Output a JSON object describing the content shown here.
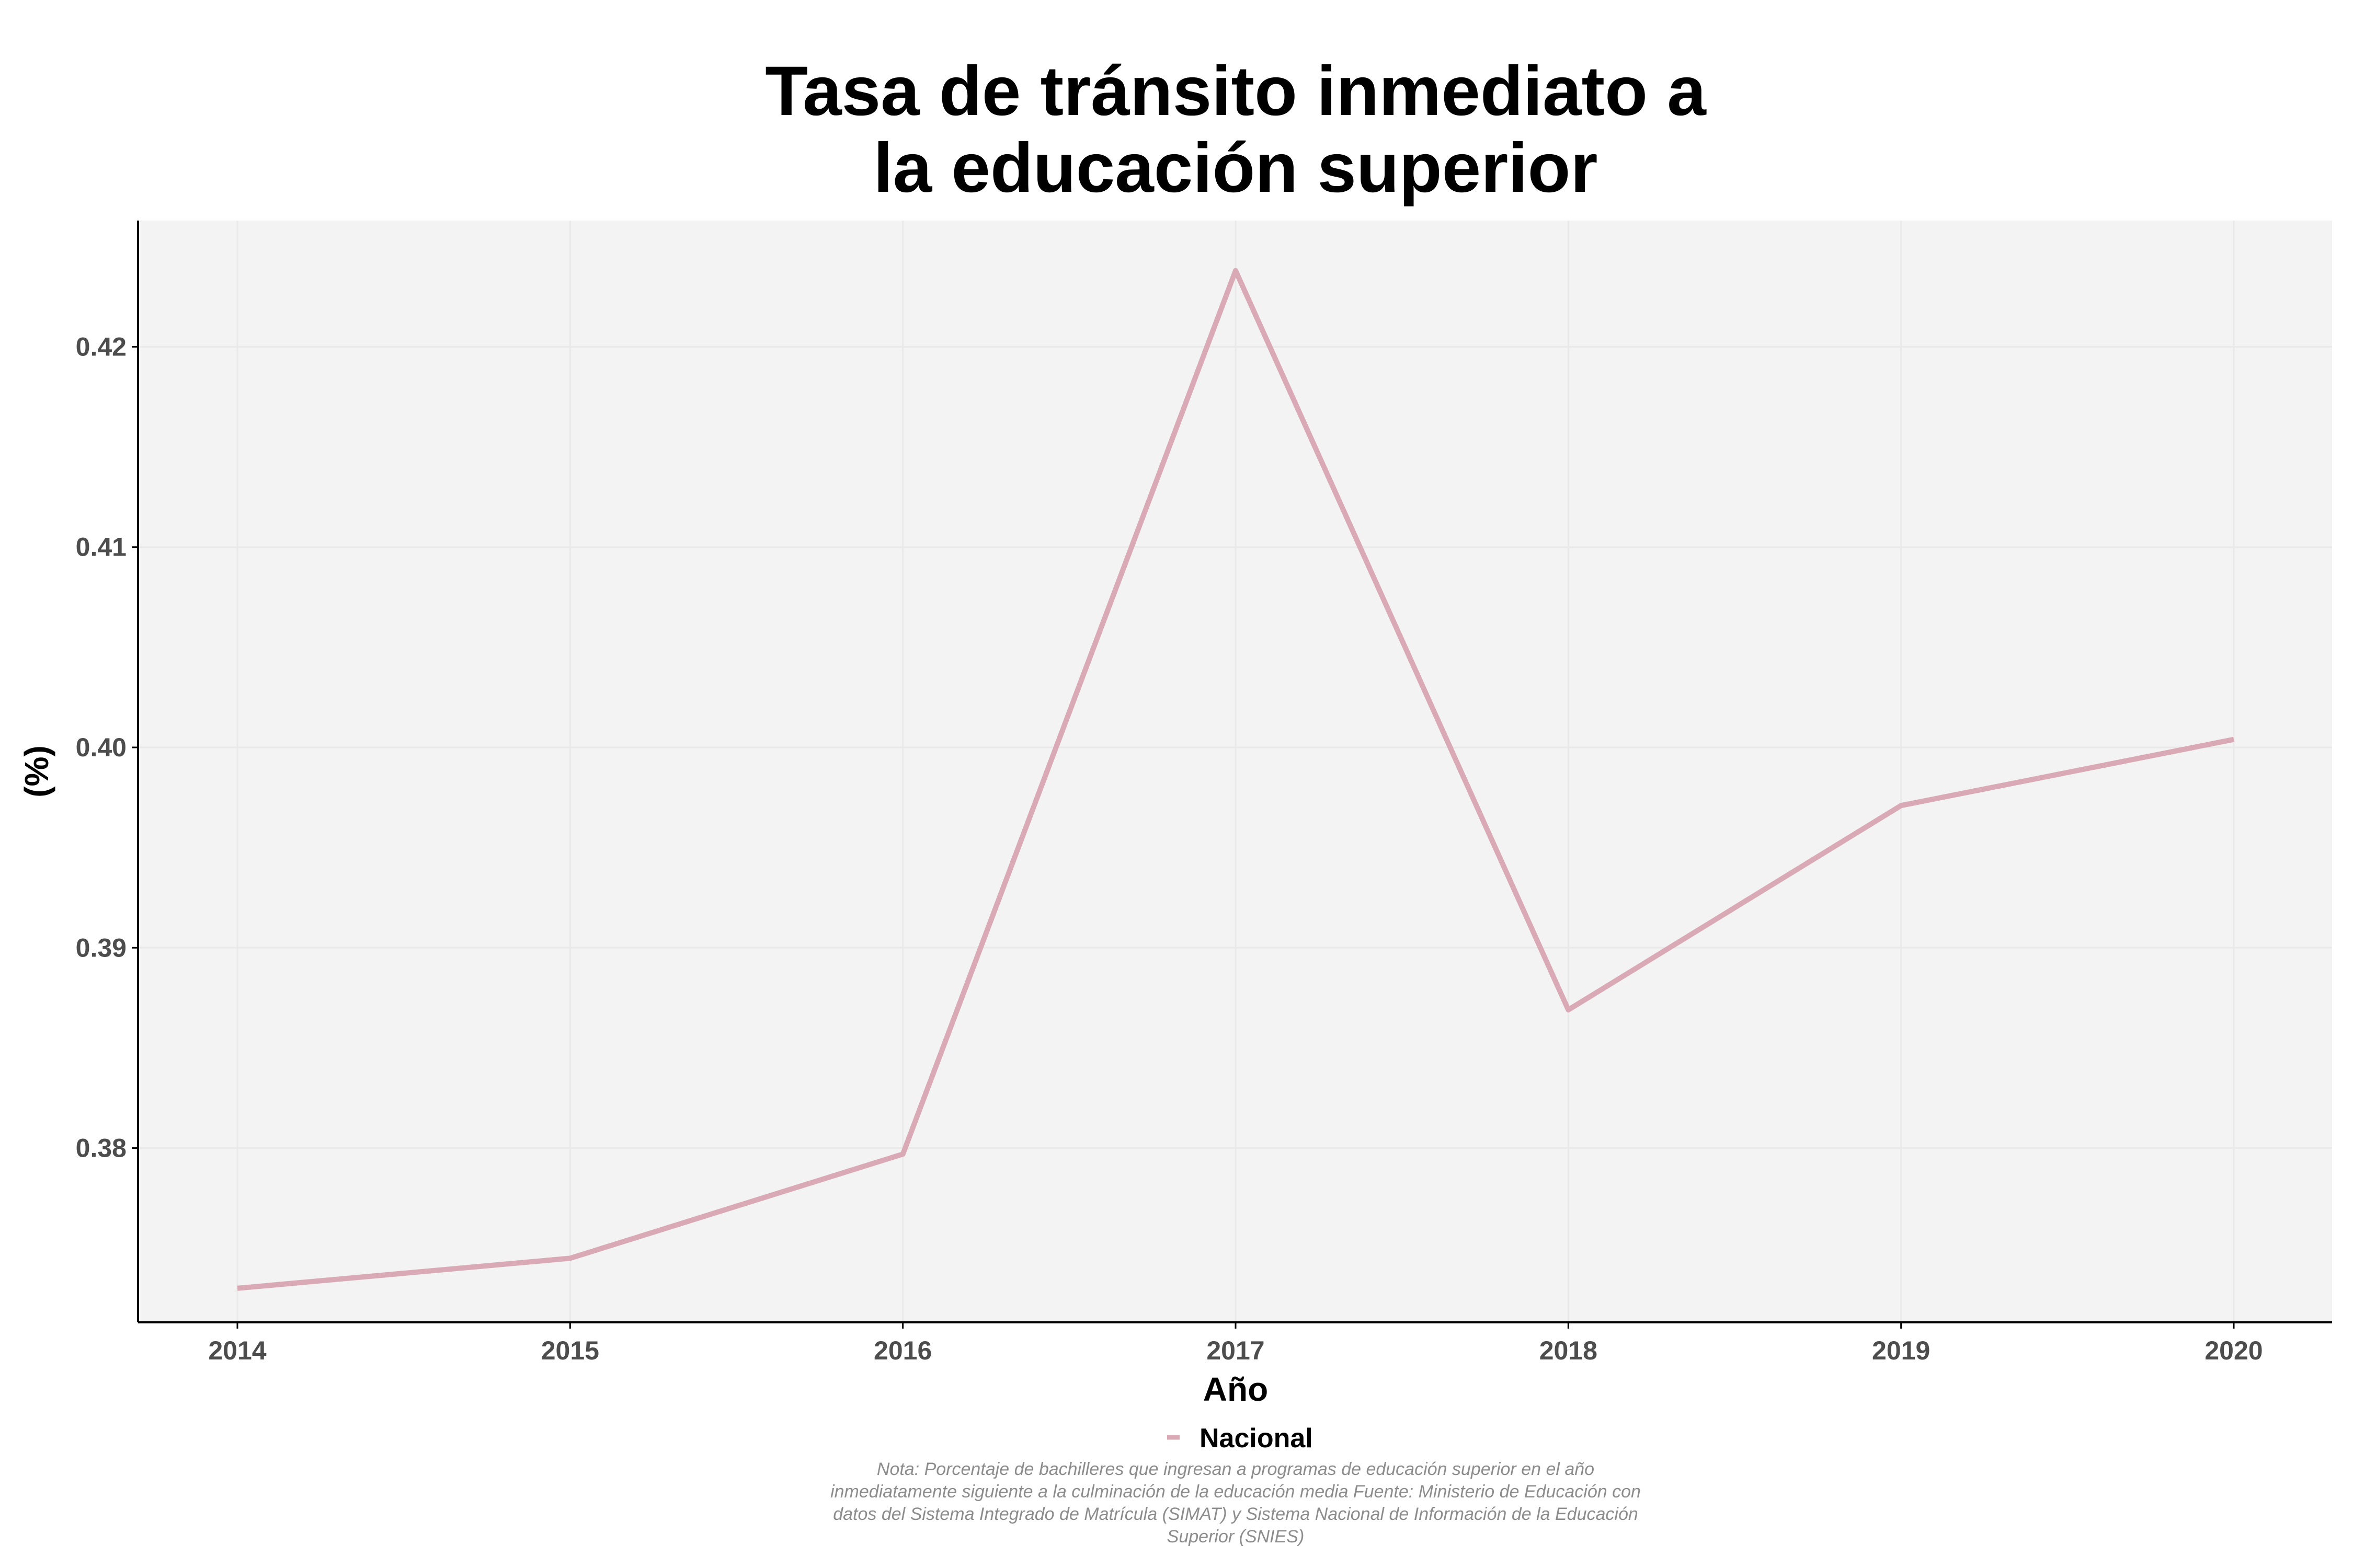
{
  "chart_data": {
    "type": "line",
    "title_lines": [
      "Tasa de tránsito inmediato a",
      "la educación superior"
    ],
    "xlabel": "Año",
    "ylabel": "(%)",
    "x": [
      "2014",
      "2015",
      "2016",
      "2017",
      "2018",
      "2019",
      "2020"
    ],
    "series": [
      {
        "name": "Nacional",
        "values": [
          0.373,
          0.3745,
          0.3797,
          0.4238,
          0.3869,
          0.3971,
          0.4004
        ],
        "color": "#d9a9b5"
      }
    ],
    "yticks": [
      "0.38",
      "0.39",
      "0.40",
      "0.41",
      "0.42"
    ],
    "ytick_values": [
      0.38,
      0.39,
      0.4,
      0.41,
      0.42
    ],
    "ylim": [
      0.3713,
      0.4263
    ],
    "grid": true,
    "legend_position": "bottom",
    "caption_lines": [
      "Nota: Porcentaje de bachilleres que ingresan a programas de educación superior en el año",
      "inmediatamente siguiente a la culminación de la educación media Fuente: Ministerio de Educación con",
      "datos del Sistema Integrado de Matrícula (SIMAT) y Sistema Nacional de Información de la Educación",
      "Superior (SNIES)"
    ],
    "colors": {
      "panel_background": "#f3f3f3",
      "grid": "#e9e9e9",
      "axis": "#000000"
    }
  }
}
